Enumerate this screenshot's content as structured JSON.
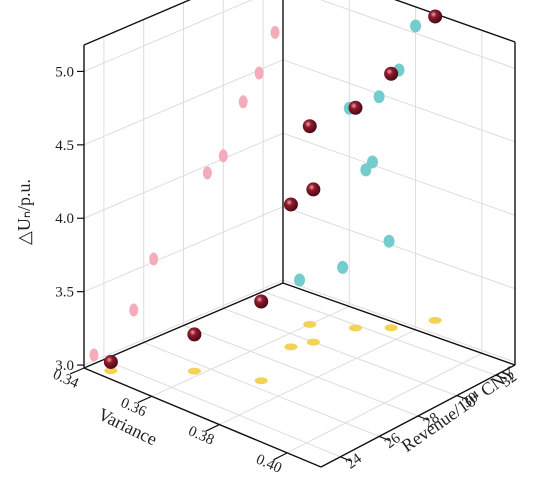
{
  "chart_data": {
    "type": "scatter",
    "title": "",
    "xlabel": "Variance",
    "ylabel": "Revenue/10⁴ CNY",
    "zlabel": "△Uₙ/p.u.",
    "xlim": [
      0.34,
      0.41
    ],
    "ylim": [
      23,
      33
    ],
    "zlim": [
      2.98,
      5.18
    ],
    "x_ticks": [
      "0.34",
      "0.36",
      "0.38",
      "0.40"
    ],
    "y_ticks": [
      "24",
      "26",
      "28",
      "30",
      "32"
    ],
    "z_ticks": [
      "3.0",
      "3.5",
      "4.0",
      "4.5",
      "5.0"
    ],
    "grid": true,
    "points": [
      {
        "x": 0.345,
        "y": 23.5,
        "z": 3.04
      },
      {
        "x": 0.358,
        "y": 25.5,
        "z": 3.23
      },
      {
        "x": 0.372,
        "y": 26.5,
        "z": 3.52
      },
      {
        "x": 0.365,
        "y": 29.2,
        "z": 3.95
      },
      {
        "x": 0.367,
        "y": 30.0,
        "z": 4.02
      },
      {
        "x": 0.36,
        "y": 31.0,
        "z": 4.33
      },
      {
        "x": 0.369,
        "y": 31.8,
        "z": 4.48
      },
      {
        "x": 0.375,
        "y": 32.6,
        "z": 4.71
      },
      {
        "x": 0.38,
        "y": 34.0,
        "z": 5.05
      }
    ],
    "colors": {
      "points": "#8e1a2b",
      "proj_xz": "#f4a8b6",
      "proj_yz": "#6ec9c9",
      "proj_xy": "#f2d14c"
    }
  }
}
